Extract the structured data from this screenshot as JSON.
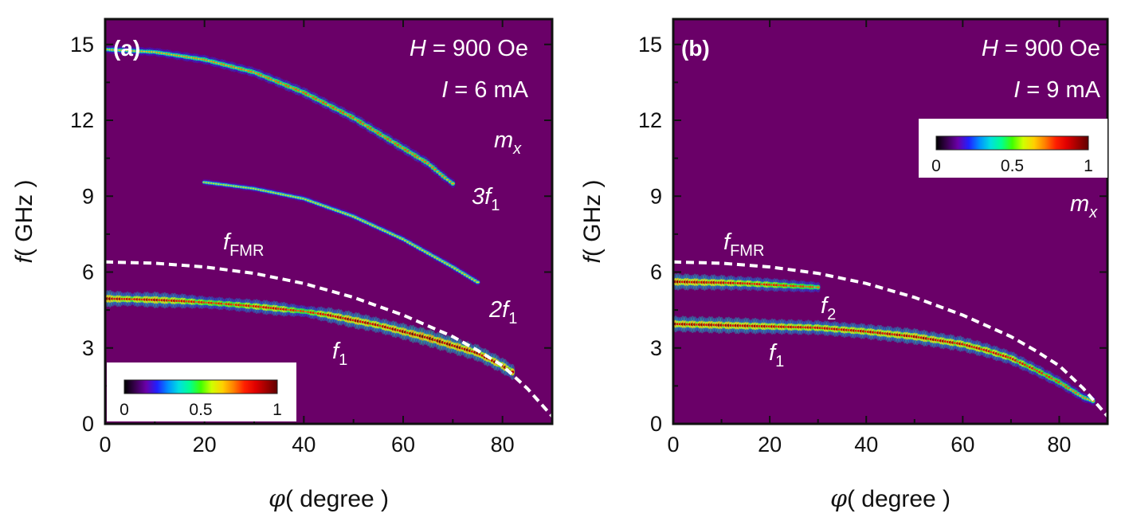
{
  "colors": {
    "background": "#6a0068",
    "frame": "#111111",
    "fmr_curve": "#ffffff",
    "colormap": [
      "#000000",
      "#3a0050",
      "#6a00a8",
      "#2020ff",
      "#0090ff",
      "#00e0e0",
      "#00ff90",
      "#40ff00",
      "#d0ff00",
      "#ffd000",
      "#ff8000",
      "#ff2000",
      "#e00000",
      "#a00000",
      "#600000"
    ]
  },
  "chart_data": [
    {
      "type": "heatmap",
      "panel": "(a)",
      "xlabel": {
        "symbol": "φ",
        "rest": "( degree )"
      },
      "ylabel": {
        "symbol": "f",
        "rest": "( GHz )"
      },
      "xlim": [
        0,
        90
      ],
      "ylim": [
        0,
        16
      ],
      "x_ticks": [
        0,
        20,
        40,
        60,
        80
      ],
      "y_ticks": [
        0,
        3,
        6,
        9,
        12,
        15
      ],
      "annotations": {
        "field": {
          "var": "H",
          "value": " = 900 Oe"
        },
        "current": {
          "var": "I",
          "value": " = 6 mA"
        },
        "component": {
          "base": "m",
          "sub": "x"
        }
      },
      "colorbar": {
        "range": [
          0,
          1
        ],
        "ticks": [
          "0",
          "0.5",
          "1"
        ],
        "position": "bottom-left"
      },
      "fmr_curve": {
        "label": {
          "base": "f",
          "sub": "FMR"
        },
        "x": [
          0,
          10,
          20,
          30,
          40,
          50,
          60,
          70,
          75,
          80,
          85,
          90
        ],
        "y": [
          6.4,
          6.35,
          6.2,
          5.95,
          5.55,
          5.0,
          4.3,
          3.45,
          2.9,
          2.3,
          1.4,
          0.3
        ]
      },
      "series": [
        {
          "name": "f1",
          "label": {
            "base": "f",
            "sub": "1"
          },
          "x": [
            0,
            5,
            10,
            15,
            20,
            25,
            30,
            35,
            40,
            45,
            50,
            55,
            60,
            65,
            70,
            75,
            80,
            82
          ],
          "y": [
            4.95,
            4.93,
            4.9,
            4.86,
            4.8,
            4.73,
            4.65,
            4.55,
            4.45,
            4.3,
            4.1,
            3.9,
            3.65,
            3.4,
            3.1,
            2.8,
            2.3,
            2.05
          ],
          "intensity": [
            0.95,
            0.7,
            0.85,
            0.75,
            0.6,
            0.6,
            0.7,
            0.75,
            0.5,
            0.8,
            0.9,
            0.8,
            0.9,
            1.0,
            0.95,
            0.9,
            0.85,
            0.8
          ]
        },
        {
          "name": "2f1",
          "label": {
            "base": "2f",
            "sub": "1"
          },
          "x": [
            20,
            30,
            40,
            50,
            60,
            70,
            75
          ],
          "y": [
            9.55,
            9.3,
            8.9,
            8.2,
            7.3,
            6.2,
            5.6
          ],
          "intensity": [
            0.15,
            0.15,
            0.18,
            0.2,
            0.2,
            0.22,
            0.2
          ]
        },
        {
          "name": "3f1",
          "label": {
            "base": "3f",
            "sub": "1"
          },
          "x": [
            0,
            10,
            20,
            30,
            40,
            50,
            60,
            65,
            68,
            70
          ],
          "y": [
            14.8,
            14.7,
            14.4,
            13.9,
            13.1,
            12.1,
            10.9,
            10.3,
            9.8,
            9.5
          ],
          "intensity": [
            0.25,
            0.3,
            0.35,
            0.4,
            0.45,
            0.45,
            0.45,
            0.4,
            0.35,
            0.3
          ]
        }
      ]
    },
    {
      "type": "heatmap",
      "panel": "(b)",
      "xlabel": {
        "symbol": "φ",
        "rest": "( degree )"
      },
      "ylabel": {
        "symbol": "f",
        "rest": "( GHz )"
      },
      "xlim": [
        0,
        90
      ],
      "ylim": [
        0,
        16
      ],
      "x_ticks": [
        0,
        20,
        40,
        60,
        80
      ],
      "y_ticks": [
        0,
        3,
        6,
        9,
        12,
        15
      ],
      "annotations": {
        "field": {
          "var": "H",
          "value": " = 900 Oe"
        },
        "current": {
          "var": "I",
          "value": " = 9 mA"
        },
        "component": {
          "base": "m",
          "sub": "x"
        }
      },
      "colorbar": {
        "range": [
          0,
          1
        ],
        "ticks": [
          "0",
          "0.5",
          "1"
        ],
        "position": "top-right"
      },
      "fmr_curve": {
        "label": {
          "base": "f",
          "sub": "FMR"
        },
        "x": [
          0,
          10,
          20,
          30,
          40,
          50,
          60,
          70,
          75,
          80,
          85,
          90
        ],
        "y": [
          6.4,
          6.35,
          6.2,
          5.95,
          5.55,
          5.0,
          4.3,
          3.45,
          2.9,
          2.3,
          1.4,
          0.3
        ]
      },
      "series": [
        {
          "name": "f2",
          "label": {
            "base": "f",
            "sub": "2"
          },
          "x": [
            0,
            5,
            10,
            15,
            20,
            25,
            30
          ],
          "y": [
            5.62,
            5.6,
            5.58,
            5.55,
            5.5,
            5.45,
            5.4
          ],
          "intensity": [
            0.9,
            0.85,
            0.8,
            0.7,
            0.65,
            0.55,
            0.45
          ]
        },
        {
          "name": "f1",
          "label": {
            "base": "f",
            "sub": "1"
          },
          "x": [
            0,
            10,
            20,
            30,
            40,
            50,
            60,
            65,
            70,
            75,
            80,
            85,
            87
          ],
          "y": [
            3.95,
            3.9,
            3.85,
            3.8,
            3.65,
            3.45,
            3.15,
            2.9,
            2.6,
            2.15,
            1.65,
            1.05,
            0.9
          ],
          "intensity": [
            0.85,
            0.9,
            0.8,
            0.75,
            0.8,
            0.85,
            0.8,
            0.75,
            0.7,
            0.6,
            0.5,
            0.35,
            0.3
          ]
        }
      ]
    }
  ]
}
